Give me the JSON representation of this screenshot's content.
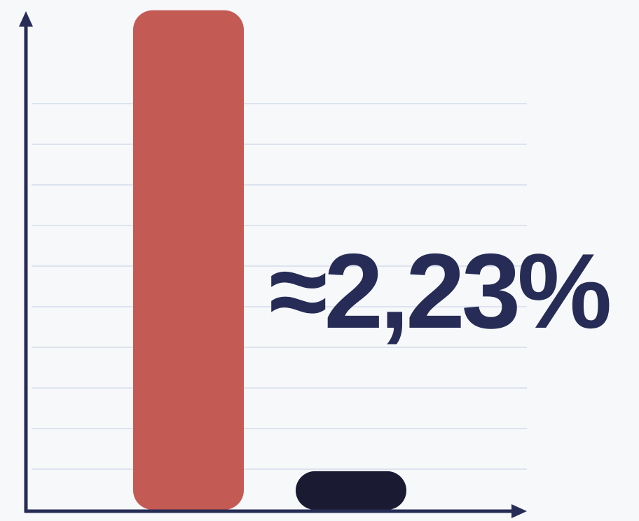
{
  "chart_data": {
    "type": "bar",
    "annotation": "≈2,23%",
    "categories": [
      null,
      null
    ],
    "values": [
      12.3,
      0.95
    ],
    "colors": [
      "#c45a54",
      "#1a1b33"
    ],
    "ylim": [
      0,
      12.5
    ],
    "yticks": [
      1,
      2,
      3,
      4,
      5,
      6,
      7,
      8,
      9,
      10
    ],
    "grid": true
  }
}
